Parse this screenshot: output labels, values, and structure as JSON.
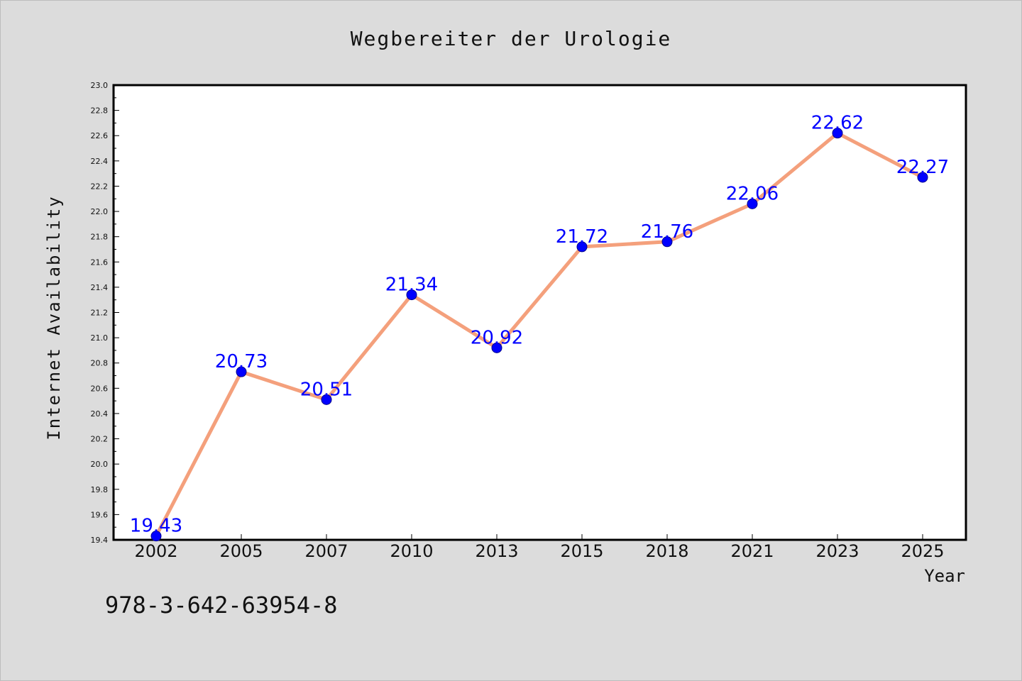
{
  "chart_data": {
    "type": "line",
    "title": "Wegbereiter der Urologie",
    "xlabel": "Year",
    "ylabel": "Internet Availability",
    "categories": [
      "2002",
      "2005",
      "2007",
      "2010",
      "2013",
      "2015",
      "2018",
      "2021",
      "2023",
      "2025"
    ],
    "series": [
      {
        "values": [
          19.43,
          20.73,
          20.51,
          21.34,
          20.92,
          21.72,
          21.76,
          22.06,
          22.62,
          22.27
        ]
      }
    ],
    "data_labels": [
      "19.43",
      "20.73",
      "20.51",
      "21.34",
      "20.92",
      "21.72",
      "21.76",
      "22.06",
      "22.62",
      "22.27"
    ],
    "ylim": [
      19.4,
      23.0
    ],
    "yticks": [
      "19.4",
      "19.6",
      "19.8",
      "20.0",
      "20.2",
      "20.4",
      "20.6",
      "20.8",
      "21.0",
      "21.2",
      "21.4",
      "21.6",
      "21.8",
      "22.0",
      "22.2",
      "22.4",
      "22.6",
      "22.8",
      "23.0"
    ],
    "grid": false,
    "colors": {
      "line": "#f4a07c",
      "marker": "#0000ff",
      "label": "#0000ff",
      "plot_bg": "#ffffff",
      "page_bg": "#dcdcdc"
    }
  },
  "footer": {
    "text": "978-3-642-63954-8"
  }
}
